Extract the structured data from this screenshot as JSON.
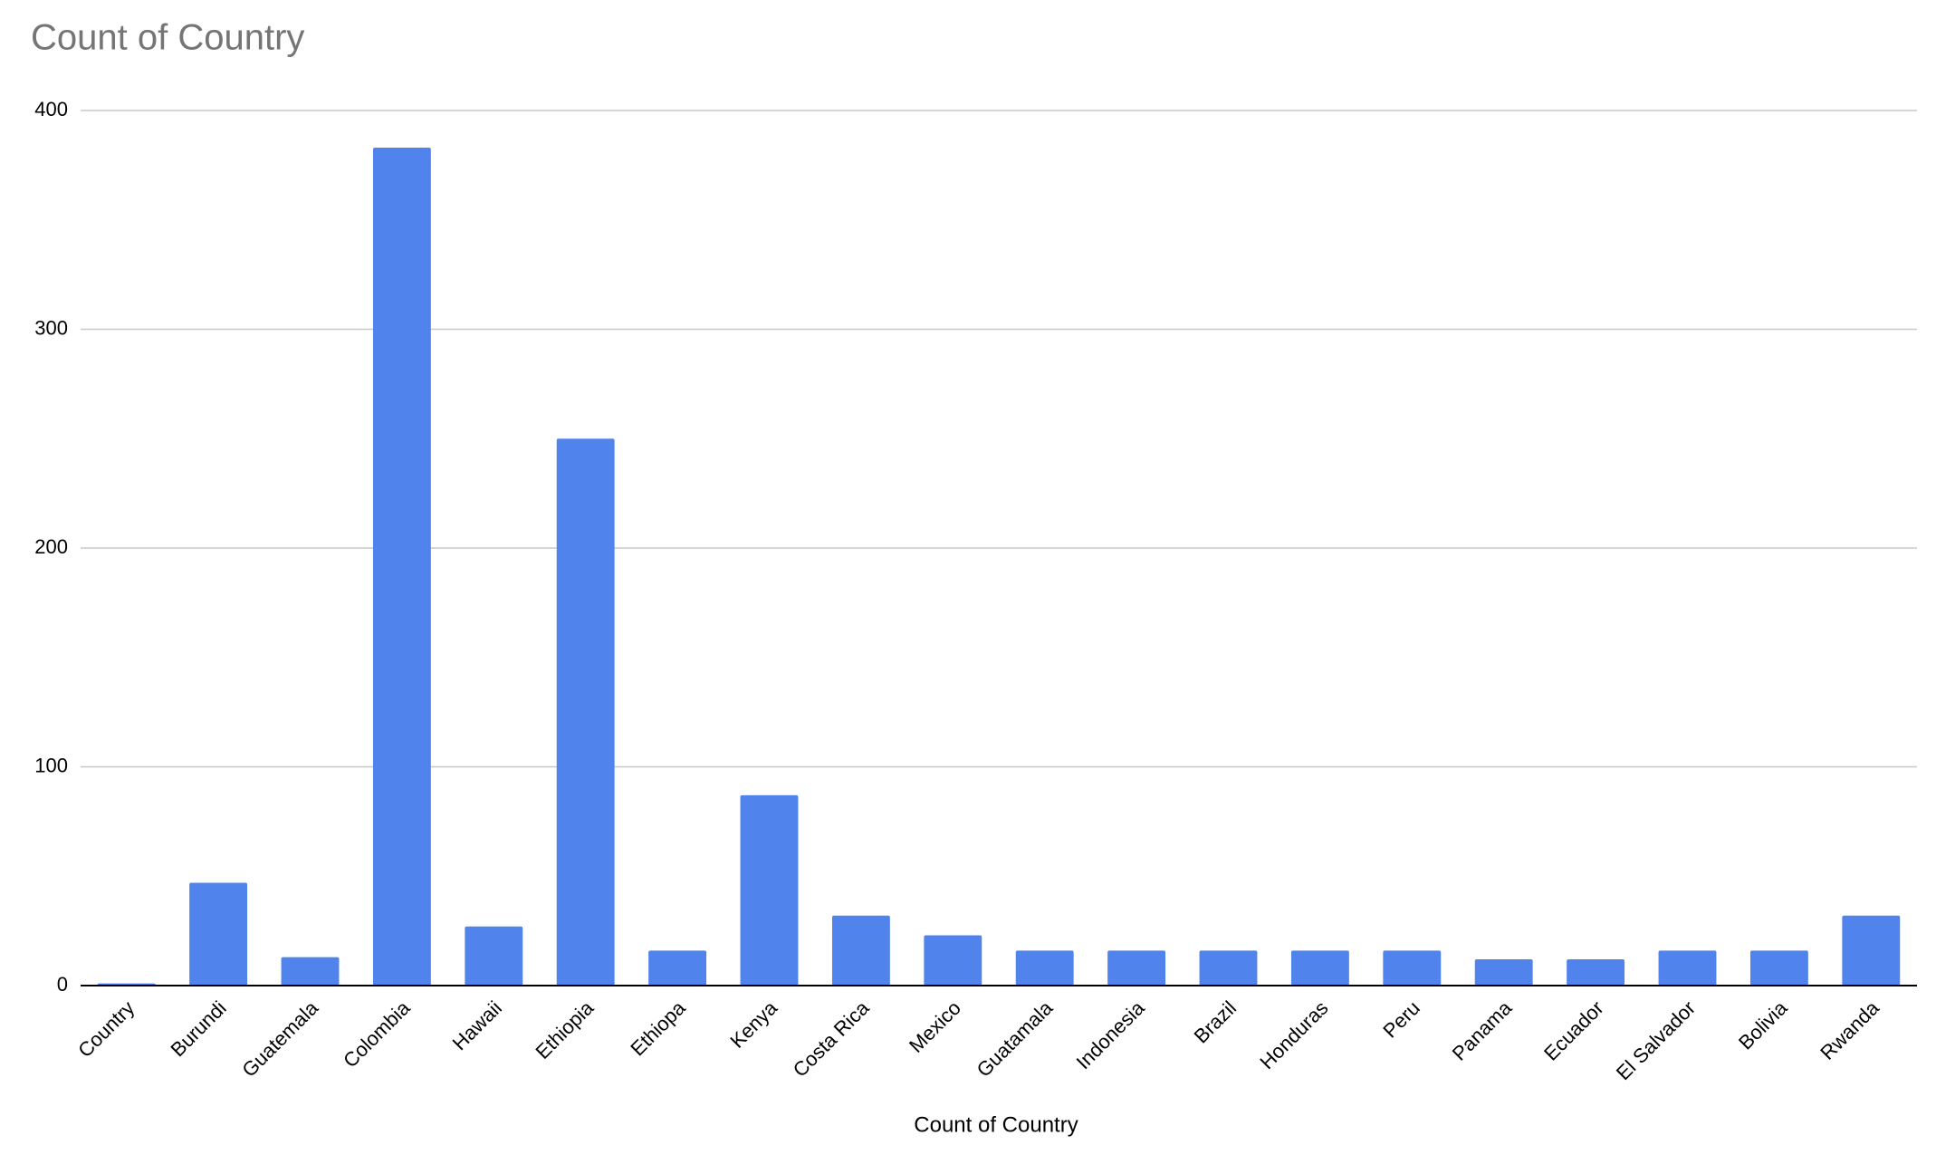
{
  "chart_data": {
    "type": "bar",
    "title": "Count of Country",
    "x_label": "Count of Country",
    "categories": [
      "Country",
      "Burundi",
      "Guatemala",
      "Colombia",
      "Hawaii",
      "Ethiopia",
      "Ethiopa",
      "Kenya",
      "Costa Rica",
      "Mexico",
      "Guatamala",
      "Indonesia",
      "Brazil",
      "Honduras",
      "Peru",
      "Panama",
      "Ecuador",
      "El Salvador",
      "Bolivia",
      "Rwanda"
    ],
    "values": [
      1,
      47,
      13,
      383,
      27,
      250,
      16,
      87,
      32,
      23,
      16,
      16,
      16,
      16,
      16,
      12,
      12,
      16,
      16,
      32
    ],
    "color": "#5083ec",
    "ylim": [
      0,
      400
    ],
    "yticks": [
      0,
      100,
      200,
      300,
      400
    ],
    "grid": true
  }
}
